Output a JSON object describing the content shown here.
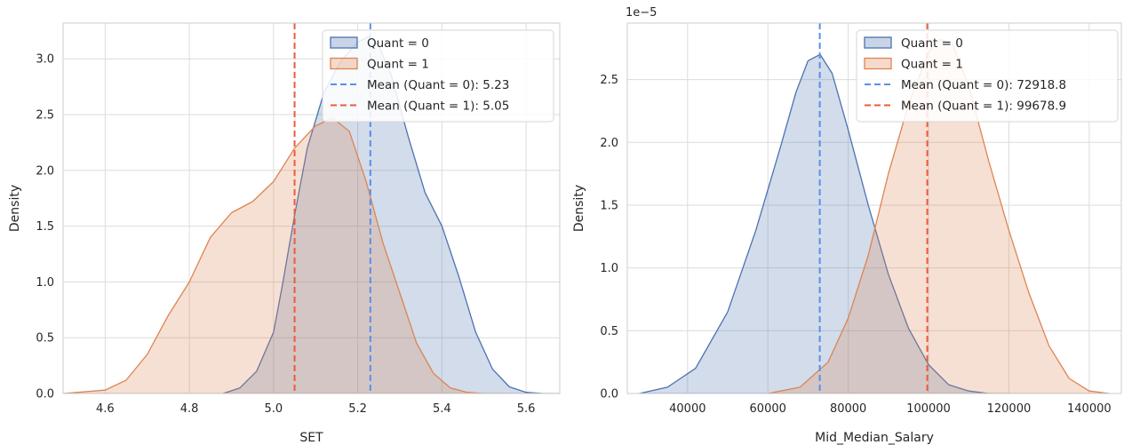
{
  "chart_data": [
    {
      "type": "area",
      "subtype": "kde",
      "xlabel": "SET",
      "ylabel": "Density",
      "xlim": [
        4.5,
        5.68
      ],
      "ylim": [
        0,
        3.32
      ],
      "xticks": [
        4.6,
        4.8,
        5.0,
        5.2,
        5.4,
        5.6
      ],
      "xtick_labels": [
        "4.6",
        "4.8",
        "5.0",
        "5.2",
        "5.4",
        "5.6"
      ],
      "yticks": [
        0,
        0.5,
        1.0,
        1.5,
        2.0,
        2.5,
        3.0
      ],
      "ytick_labels": [
        "0.0",
        "0.5",
        "1.0",
        "1.5",
        "2.0",
        "2.5",
        "3.0"
      ],
      "grid": true,
      "legend_position": "top-right",
      "series": [
        {
          "name": "Quant = 0",
          "color": "#4c72b0",
          "x": [
            4.88,
            4.92,
            4.96,
            5.0,
            5.02,
            5.05,
            5.08,
            5.12,
            5.16,
            5.2,
            5.225,
            5.25,
            5.28,
            5.32,
            5.36,
            5.4,
            5.44,
            5.48,
            5.52,
            5.56,
            5.6,
            5.64,
            5.68
          ],
          "y": [
            0.0,
            0.05,
            0.2,
            0.55,
            0.95,
            1.6,
            2.2,
            2.7,
            2.98,
            3.15,
            3.2,
            3.12,
            2.85,
            2.3,
            1.8,
            1.5,
            1.05,
            0.55,
            0.22,
            0.06,
            0.01,
            0.0,
            0.0
          ]
        },
        {
          "name": "Quant = 1",
          "color": "#dd8452",
          "x": [
            4.5,
            4.6,
            4.65,
            4.7,
            4.75,
            4.8,
            4.85,
            4.9,
            4.95,
            5.0,
            5.05,
            5.1,
            5.14,
            5.18,
            5.22,
            5.26,
            5.3,
            5.34,
            5.38,
            5.42,
            5.46,
            5.5,
            5.55
          ],
          "y": [
            0.0,
            0.03,
            0.12,
            0.35,
            0.7,
            1.0,
            1.4,
            1.62,
            1.72,
            1.9,
            2.2,
            2.4,
            2.47,
            2.35,
            1.9,
            1.35,
            0.9,
            0.45,
            0.18,
            0.05,
            0.01,
            0.0,
            0.0
          ]
        }
      ],
      "mean_lines": [
        {
          "name": "Mean (Quant = 0): 5.23",
          "x": 5.23,
          "color": "#5b8fe6"
        },
        {
          "name": "Mean (Quant = 1): 5.05",
          "x": 5.05,
          "color": "#ef5a3c"
        }
      ]
    },
    {
      "type": "area",
      "subtype": "kde",
      "xlabel": "Mid_Median_Salary",
      "ylabel": "Density",
      "y_offset_label": "1e−5",
      "xlim": [
        25000,
        148000
      ],
      "ylim": [
        0,
        2.95
      ],
      "xticks": [
        40000,
        60000,
        80000,
        100000,
        120000,
        140000
      ],
      "xtick_labels": [
        "40000",
        "60000",
        "80000",
        "100000",
        "120000",
        "140000"
      ],
      "yticks": [
        0,
        0.5,
        1.0,
        1.5,
        2.0,
        2.5
      ],
      "ytick_labels": [
        "0.0",
        "0.5",
        "1.0",
        "1.5",
        "2.0",
        "2.5"
      ],
      "grid": true,
      "legend_position": "top-right",
      "series": [
        {
          "name": "Quant = 0",
          "color": "#4c72b0",
          "x": [
            28000,
            35000,
            42000,
            50000,
            57000,
            63000,
            67000,
            70000,
            73000,
            76000,
            80000,
            85000,
            90000,
            95000,
            100000,
            105000,
            110000,
            115000,
            120000
          ],
          "y": [
            0.0,
            0.05,
            0.2,
            0.65,
            1.3,
            1.95,
            2.4,
            2.65,
            2.7,
            2.55,
            2.1,
            1.5,
            0.95,
            0.52,
            0.23,
            0.07,
            0.02,
            0.0,
            0.0
          ],
          "display": [
            0.0,
            0.04,
            0.2,
            0.65,
            1.3,
            1.95,
            2.4,
            2.65,
            2.68,
            2.55,
            2.1,
            1.5,
            0.95,
            0.52,
            0.23,
            0.07,
            0.02,
            0.0,
            0.0
          ]
        },
        {
          "name": "Quant = 1",
          "color": "#dd8452",
          "x": [
            60000,
            68000,
            75000,
            80000,
            85000,
            90000,
            95000,
            100000,
            103000,
            106000,
            110000,
            115000,
            120000,
            125000,
            130000,
            135000,
            140000,
            145000
          ],
          "y": [
            0.0,
            0.05,
            0.25,
            0.6,
            1.1,
            1.75,
            2.3,
            2.72,
            2.82,
            2.78,
            2.45,
            1.85,
            1.3,
            0.8,
            0.38,
            0.12,
            0.02,
            0.0
          ]
        }
      ],
      "mean_lines": [
        {
          "name": "Mean (Quant = 0): 72918.8",
          "x": 72918.8,
          "color": "#5b8fe6"
        },
        {
          "name": "Mean (Quant = 1): 99678.9",
          "x": 99678.9,
          "color": "#ef5a3c"
        }
      ]
    }
  ]
}
